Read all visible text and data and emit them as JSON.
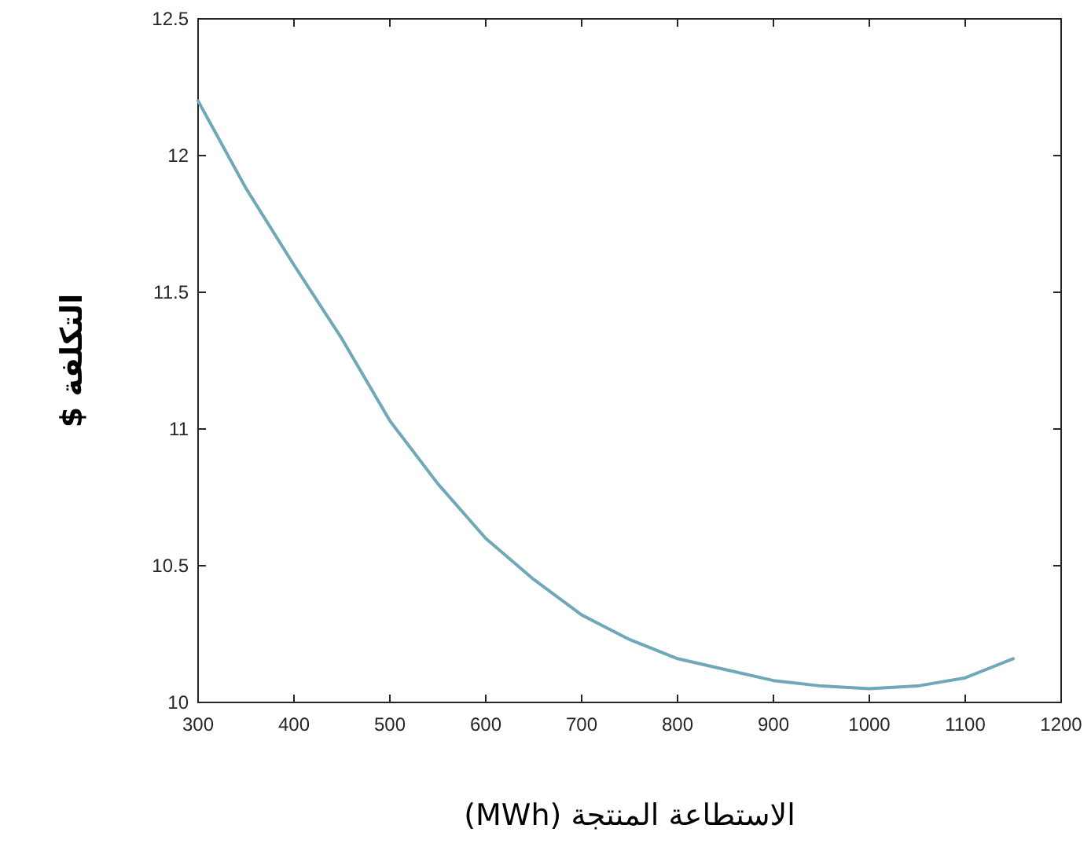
{
  "chart_data": {
    "type": "line",
    "xlabel": "الاستطاعة المنتجة (MWh)",
    "ylabel": "التكلفة $",
    "x": [
      300,
      350,
      400,
      450,
      500,
      550,
      600,
      650,
      700,
      750,
      800,
      850,
      900,
      950,
      1000,
      1050,
      1100,
      1150
    ],
    "series": [
      {
        "color": "#6fa8b8",
        "values": [
          12.2,
          11.88,
          11.6,
          11.33,
          11.03,
          10.8,
          10.6,
          10.45,
          10.32,
          10.23,
          10.16,
          10.12,
          10.08,
          10.06,
          10.05,
          10.06,
          10.09,
          10.16
        ]
      }
    ],
    "xlim": [
      300,
      1200
    ],
    "ylim": [
      10,
      12.5
    ],
    "xticks": [
      300,
      400,
      500,
      600,
      700,
      800,
      900,
      1000,
      1100,
      1200
    ],
    "yticks": [
      10,
      10.5,
      11,
      11.5,
      12,
      12.5
    ],
    "grid": false,
    "marker": "none",
    "line_style": "solid"
  }
}
